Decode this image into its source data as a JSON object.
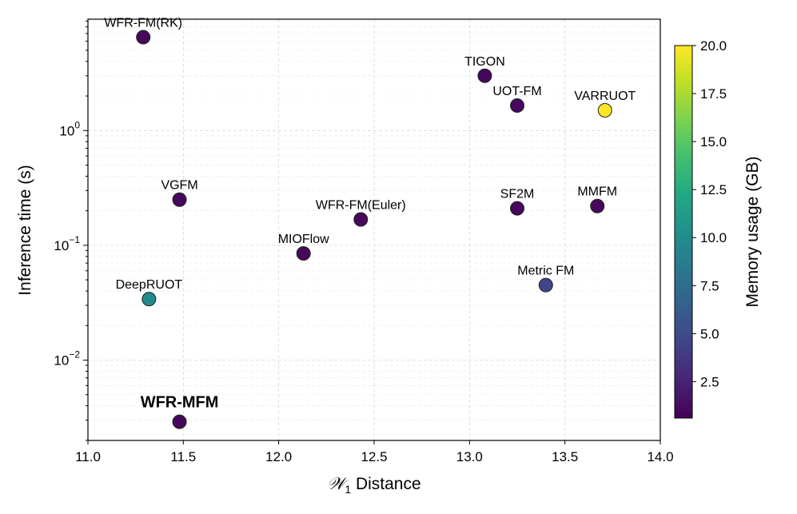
{
  "chart_data": {
    "type": "scatter",
    "xlabel_script": "𝒲",
    "xlabel_sub": "1",
    "xlabel_rest": " Distance",
    "ylabel": "Inference time (s)",
    "xscale": "linear",
    "yscale": "log",
    "xlim": [
      11.0,
      14.0
    ],
    "ylim_log10": [
      -2.7,
      0.97
    ],
    "x_ticks": [
      "11.0",
      "11.5",
      "12.0",
      "12.5",
      "13.0",
      "13.5",
      "14.0"
    ],
    "y_ticks": [
      {
        "exp": -2,
        "base": "10",
        "sup": "−2"
      },
      {
        "exp": -1,
        "base": "10",
        "sup": "−1"
      },
      {
        "exp": 0,
        "base": "10",
        "sup": "0"
      }
    ],
    "grid": true,
    "colorbar": {
      "label": "Memory usage (GB)",
      "range": [
        0.6,
        20.0
      ],
      "ticks": [
        "2.5",
        "5.0",
        "7.5",
        "10.0",
        "12.5",
        "15.0",
        "17.5",
        "20.0"
      ],
      "colormap": "viridis",
      "stops": [
        "#440154",
        "#482475",
        "#414487",
        "#355f8d",
        "#2a788e",
        "#21908d",
        "#22a884",
        "#42be71",
        "#7ad151",
        "#bddf26",
        "#fde725"
      ]
    },
    "points": [
      {
        "label": "WFR-FM(RK)",
        "x": 11.29,
        "y": 6.5,
        "memory": 1.0,
        "bold": false
      },
      {
        "label": "TIGON",
        "x": 13.08,
        "y": 3.0,
        "memory": 1.0,
        "bold": false
      },
      {
        "label": "UOT-FM",
        "x": 13.25,
        "y": 1.65,
        "memory": 1.0,
        "bold": false
      },
      {
        "label": "VARRUOT",
        "x": 13.71,
        "y": 1.5,
        "memory": 20.0,
        "bold": false
      },
      {
        "label": "VGFM",
        "x": 11.48,
        "y": 0.25,
        "memory": 1.0,
        "bold": false
      },
      {
        "label": "WFR-FM(Euler)",
        "x": 12.43,
        "y": 0.168,
        "memory": 1.0,
        "bold": false
      },
      {
        "label": "SF2M",
        "x": 13.25,
        "y": 0.21,
        "memory": 1.0,
        "bold": false
      },
      {
        "label": "MMFM",
        "x": 13.67,
        "y": 0.22,
        "memory": 1.0,
        "bold": false
      },
      {
        "label": "MIOFlow",
        "x": 12.13,
        "y": 0.085,
        "memory": 1.0,
        "bold": false
      },
      {
        "label": "Metric FM",
        "x": 13.4,
        "y": 0.045,
        "memory": 4.5,
        "bold": false
      },
      {
        "label": "DeepRUOT",
        "x": 11.32,
        "y": 0.034,
        "memory": 10.0,
        "bold": false
      },
      {
        "label": "WFR-MFM",
        "x": 11.48,
        "y": 0.0029,
        "memory": 1.0,
        "bold": true
      }
    ]
  }
}
